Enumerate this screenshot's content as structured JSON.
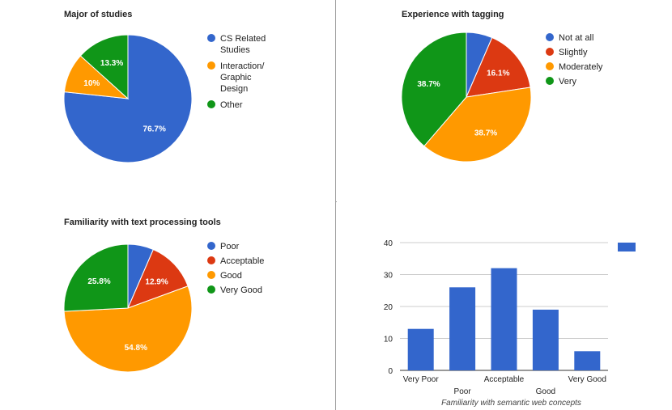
{
  "chart_data": [
    {
      "type": "pie",
      "title": "Major of studies",
      "legend_position": "right",
      "slices": [
        {
          "label": "CS Related Studies",
          "value": 76.7,
          "display": "76.7%",
          "color": "#3366cc"
        },
        {
          "label": "Interaction/ Graphic Design",
          "value": 10.0,
          "display": "10%",
          "color": "#ff9900"
        },
        {
          "label": "Other",
          "value": 13.3,
          "display": "13.3%",
          "color": "#109618"
        }
      ]
    },
    {
      "type": "pie",
      "title": "Experience with tagging",
      "legend_position": "right",
      "slices": [
        {
          "label": "Not at all",
          "value": 6.5,
          "display": "",
          "color": "#3366cc"
        },
        {
          "label": "Slightly",
          "value": 16.1,
          "display": "16.1%",
          "color": "#dc3912"
        },
        {
          "label": "Moderately",
          "value": 38.7,
          "display": "38.7%",
          "color": "#ff9900"
        },
        {
          "label": "Very",
          "value": 38.7,
          "display": "38.7%",
          "color": "#109618"
        }
      ]
    },
    {
      "type": "pie",
      "title": "Familiarity with text processing tools",
      "legend_position": "right",
      "slices": [
        {
          "label": "Poor",
          "value": 6.5,
          "display": "",
          "color": "#3366cc"
        },
        {
          "label": "Acceptable",
          "value": 12.9,
          "display": "12.9%",
          "color": "#dc3912"
        },
        {
          "label": "Good",
          "value": 54.8,
          "display": "54.8%",
          "color": "#ff9900"
        },
        {
          "label": "Very Good",
          "value": 25.8,
          "display": "25.8%",
          "color": "#109618"
        }
      ]
    },
    {
      "type": "bar",
      "title": "",
      "xlabel": "Familiarity with semantic web concepts",
      "ylabel": "",
      "categories": [
        "Very Poor",
        "Poor",
        "Acceptable",
        "Good",
        "Very Good"
      ],
      "values": [
        13,
        26,
        32,
        19,
        6
      ],
      "ylim": [
        0,
        40
      ],
      "yticks": [
        "0",
        "10",
        "20",
        "30",
        "40"
      ],
      "grid": true,
      "legend_position": "top-right",
      "color": "#3366cc"
    }
  ]
}
